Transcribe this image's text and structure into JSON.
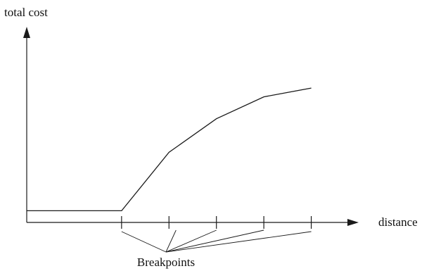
{
  "chart_data": {
    "type": "line",
    "xlabel": "distance",
    "ylabel": "total cost",
    "annotation": "Breakpoints",
    "x": [
      0,
      1,
      2,
      3,
      4,
      5
    ],
    "y": [
      0,
      0,
      2.0,
      3.15,
      3.9,
      4.2
    ],
    "breakpoints": [
      1,
      2,
      3,
      4,
      5
    ],
    "xlim": [
      -1,
      6
    ],
    "ylim": [
      -0.4,
      6.3
    ],
    "grid": false
  },
  "colors": {
    "line": "#1a1a1a",
    "background": "#ffffff"
  }
}
